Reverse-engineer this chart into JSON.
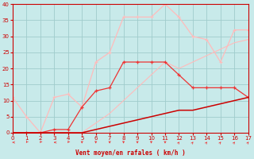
{
  "xlabel": "Vent moyen/en rafales ( km/h )",
  "x": [
    0,
    1,
    2,
    3,
    4,
    5,
    6,
    7,
    8,
    9,
    10,
    11,
    12,
    13,
    14,
    15,
    16,
    17
  ],
  "line_lightest": [
    11,
    5,
    0,
    11,
    12,
    8,
    22,
    25,
    36,
    36,
    36,
    40,
    36,
    30,
    29,
    22,
    32,
    32
  ],
  "line_light": [
    0,
    0,
    0,
    0,
    0,
    0,
    3,
    6,
    10,
    14,
    18,
    22,
    20,
    22,
    24,
    26,
    28,
    29
  ],
  "line_medium": [
    0,
    0,
    0,
    1,
    1,
    8,
    13,
    14,
    22,
    22,
    22,
    22,
    18,
    14,
    14,
    14,
    14,
    11
  ],
  "line_dark": [
    0,
    0,
    0,
    0,
    0,
    0,
    1,
    2,
    3,
    4,
    5,
    6,
    7,
    7,
    8,
    9,
    10,
    11
  ],
  "color_dark": "#cc0000",
  "color_medium": "#ee3333",
  "color_light": "#ff9999",
  "color_lightest": "#ffbbbb",
  "bg_color": "#c8eaea",
  "grid_color": "#a0cccc",
  "ylim": [
    0,
    40
  ],
  "xlim": [
    0,
    17
  ],
  "yticks": [
    0,
    5,
    10,
    15,
    20,
    25,
    30,
    35,
    40
  ],
  "xticks": [
    0,
    1,
    2,
    3,
    4,
    5,
    6,
    7,
    8,
    9,
    10,
    11,
    12,
    13,
    14,
    15,
    16,
    17
  ]
}
